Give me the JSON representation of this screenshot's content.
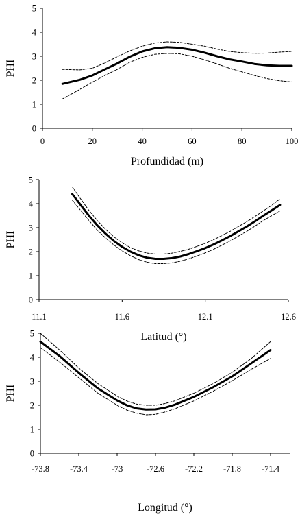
{
  "chart_data": [
    {
      "type": "line",
      "xlabel": "Profundidad (m)",
      "ylabel": "PHI",
      "xlim": [
        0,
        100
      ],
      "ylim": [
        0,
        5
      ],
      "x_ticks": [
        "0",
        "20",
        "40",
        "60",
        "80",
        "100"
      ],
      "y_ticks": [
        "0",
        "1",
        "2",
        "3",
        "4",
        "5"
      ],
      "series": [
        {
          "role": "fit",
          "style": "solid-thick",
          "x": [
            8,
            15,
            20,
            25,
            30,
            35,
            40,
            45,
            50,
            55,
            60,
            65,
            70,
            75,
            80,
            85,
            90,
            95,
            100
          ],
          "y": [
            1.85,
            2.02,
            2.2,
            2.45,
            2.7,
            2.98,
            3.2,
            3.33,
            3.38,
            3.35,
            3.27,
            3.15,
            3.0,
            2.87,
            2.78,
            2.68,
            2.62,
            2.6,
            2.6
          ]
        },
        {
          "role": "upper",
          "style": "dashed",
          "x": [
            8,
            15,
            20,
            25,
            30,
            35,
            40,
            45,
            50,
            55,
            60,
            65,
            70,
            75,
            80,
            85,
            90,
            95,
            100
          ],
          "y": [
            2.45,
            2.43,
            2.5,
            2.72,
            2.98,
            3.22,
            3.42,
            3.55,
            3.6,
            3.58,
            3.5,
            3.42,
            3.3,
            3.2,
            3.15,
            3.12,
            3.13,
            3.17,
            3.2
          ]
        },
        {
          "role": "lower",
          "style": "dashed",
          "x": [
            8,
            15,
            20,
            25,
            30,
            35,
            40,
            45,
            50,
            55,
            60,
            65,
            70,
            75,
            80,
            85,
            90,
            95,
            100
          ],
          "y": [
            1.22,
            1.62,
            1.92,
            2.2,
            2.45,
            2.75,
            2.95,
            3.08,
            3.12,
            3.1,
            3.0,
            2.85,
            2.68,
            2.5,
            2.35,
            2.2,
            2.07,
            1.98,
            1.93
          ]
        }
      ]
    },
    {
      "type": "line",
      "xlabel": "Latitud (°)",
      "ylabel": "PHI",
      "xlim": [
        11.1,
        12.6
      ],
      "ylim": [
        0,
        5
      ],
      "x_ticks": [
        "11.1",
        "11.6",
        "12.1",
        "12.6"
      ],
      "y_ticks": [
        "0",
        "1",
        "2",
        "3",
        "4",
        "5"
      ],
      "series": [
        {
          "role": "fit",
          "style": "solid-thick",
          "x": [
            11.3,
            11.35,
            11.4,
            11.45,
            11.5,
            11.55,
            11.6,
            11.65,
            11.7,
            11.75,
            11.8,
            11.85,
            11.9,
            11.95,
            12.0,
            12.05,
            12.1,
            12.15,
            12.2,
            12.25,
            12.3,
            12.35,
            12.4,
            12.45,
            12.5,
            12.55
          ],
          "y": [
            4.4,
            3.95,
            3.5,
            3.1,
            2.75,
            2.45,
            2.2,
            2.0,
            1.85,
            1.75,
            1.7,
            1.7,
            1.73,
            1.8,
            1.9,
            2.02,
            2.15,
            2.3,
            2.47,
            2.65,
            2.85,
            3.05,
            3.27,
            3.5,
            3.72,
            3.95
          ]
        },
        {
          "role": "upper",
          "style": "dashed",
          "x": [
            11.3,
            11.35,
            11.4,
            11.45,
            11.5,
            11.55,
            11.6,
            11.65,
            11.7,
            11.75,
            11.8,
            11.85,
            11.9,
            11.95,
            12.0,
            12.05,
            12.1,
            12.15,
            12.2,
            12.25,
            12.3,
            12.35,
            12.4,
            12.45,
            12.5,
            12.55
          ],
          "y": [
            4.7,
            4.2,
            3.72,
            3.3,
            2.93,
            2.62,
            2.37,
            2.17,
            2.03,
            1.94,
            1.9,
            1.9,
            1.94,
            2.01,
            2.1,
            2.22,
            2.35,
            2.5,
            2.67,
            2.85,
            3.05,
            3.25,
            3.47,
            3.7,
            3.93,
            4.2
          ]
        },
        {
          "role": "lower",
          "style": "dashed",
          "x": [
            11.3,
            11.35,
            11.4,
            11.45,
            11.5,
            11.55,
            11.6,
            11.65,
            11.7,
            11.75,
            11.8,
            11.85,
            11.9,
            11.95,
            12.0,
            12.05,
            12.1,
            12.15,
            12.2,
            12.25,
            12.3,
            12.35,
            12.4,
            12.45,
            12.5,
            12.55
          ],
          "y": [
            4.15,
            3.72,
            3.3,
            2.9,
            2.57,
            2.28,
            2.03,
            1.83,
            1.67,
            1.56,
            1.5,
            1.5,
            1.53,
            1.6,
            1.7,
            1.82,
            1.95,
            2.1,
            2.27,
            2.45,
            2.65,
            2.85,
            3.07,
            3.3,
            3.5,
            3.7
          ]
        }
      ]
    },
    {
      "type": "line",
      "xlabel": "Longitud (°)",
      "ylabel": "PHI",
      "xlim": [
        -73.8,
        -71.2
      ],
      "ylim": [
        0,
        5
      ],
      "x_ticks": [
        "-73.8",
        "-73.4",
        "-73",
        "-72.6",
        "-72.2",
        "-71.8",
        "-71.4"
      ],
      "x_tick_values": [
        -73.8,
        -73.4,
        -73.0,
        -72.6,
        -72.2,
        -71.8,
        -71.4
      ],
      "y_ticks": [
        "0",
        "1",
        "2",
        "3",
        "4",
        "5"
      ],
      "series": [
        {
          "role": "fit",
          "style": "solid-thick",
          "x": [
            -73.8,
            -73.6,
            -73.4,
            -73.2,
            -73.0,
            -72.9,
            -72.8,
            -72.7,
            -72.6,
            -72.5,
            -72.4,
            -72.2,
            -72.0,
            -71.8,
            -71.6,
            -71.4
          ],
          "y": [
            4.65,
            4.05,
            3.35,
            2.7,
            2.2,
            2.0,
            1.87,
            1.82,
            1.83,
            1.9,
            2.02,
            2.35,
            2.75,
            3.2,
            3.75,
            4.3
          ]
        },
        {
          "role": "upper",
          "style": "dashed",
          "x": [
            -73.8,
            -73.6,
            -73.4,
            -73.2,
            -73.0,
            -72.9,
            -72.8,
            -72.7,
            -72.6,
            -72.5,
            -72.4,
            -72.2,
            -72.0,
            -71.8,
            -71.6,
            -71.4
          ],
          "y": [
            5.0,
            4.3,
            3.55,
            2.9,
            2.38,
            2.18,
            2.05,
            2.0,
            2.0,
            2.07,
            2.18,
            2.5,
            2.9,
            3.37,
            3.95,
            4.65
          ]
        },
        {
          "role": "lower",
          "style": "dashed",
          "x": [
            -73.8,
            -73.6,
            -73.4,
            -73.2,
            -73.0,
            -72.9,
            -72.8,
            -72.7,
            -72.6,
            -72.5,
            -72.4,
            -72.2,
            -72.0,
            -71.8,
            -71.6,
            -71.4
          ],
          "y": [
            4.4,
            3.8,
            3.15,
            2.5,
            2.0,
            1.8,
            1.67,
            1.6,
            1.62,
            1.72,
            1.85,
            2.18,
            2.58,
            3.02,
            3.5,
            3.95
          ]
        }
      ]
    }
  ]
}
